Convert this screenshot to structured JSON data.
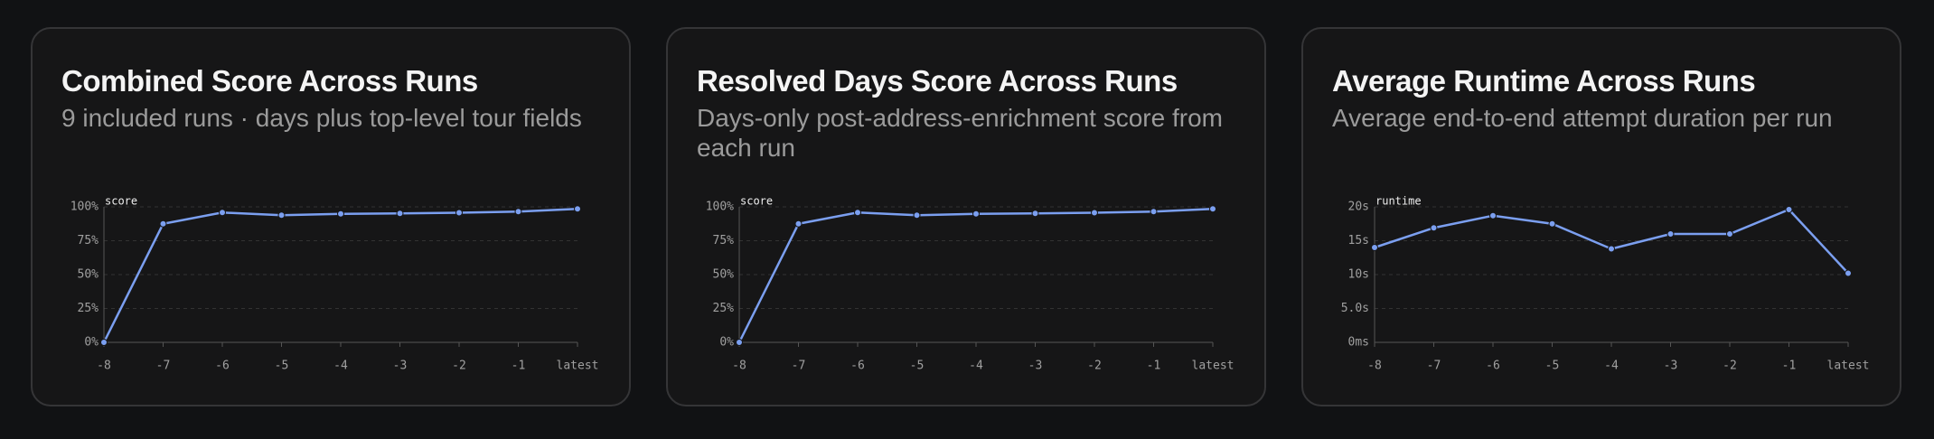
{
  "chart_data": [
    {
      "type": "line",
      "title": "Combined Score Across Runs",
      "subtitle": "9 included runs · days plus top-level tour fields",
      "y_label": "score",
      "categories": [
        "-8",
        "-7",
        "-6",
        "-5",
        "-4",
        "-3",
        "-2",
        "-1",
        "latest"
      ],
      "series": [
        {
          "color": "#7b9ff0",
          "values": [
            0,
            87.5,
            95.8,
            93.8,
            94.8,
            95.2,
            95.7,
            96.5,
            98.5
          ]
        }
      ],
      "ylim": [
        0,
        100
      ],
      "yticks": [
        {
          "value": 0,
          "label": "0%"
        },
        {
          "value": 25,
          "label": "25%"
        },
        {
          "value": 50,
          "label": "50%"
        },
        {
          "value": 75,
          "label": "75%"
        },
        {
          "value": 100,
          "label": "100%"
        }
      ],
      "grid": true
    },
    {
      "type": "line",
      "title": "Resolved Days Score Across Runs",
      "subtitle": "Days-only post-address-enrichment score from each run",
      "y_label": "score",
      "categories": [
        "-8",
        "-7",
        "-6",
        "-5",
        "-4",
        "-3",
        "-2",
        "-1",
        "latest"
      ],
      "series": [
        {
          "color": "#7b9ff0",
          "values": [
            0,
            87.5,
            95.8,
            93.8,
            94.8,
            95.2,
            95.7,
            96.5,
            98.5
          ]
        }
      ],
      "ylim": [
        0,
        100
      ],
      "yticks": [
        {
          "value": 0,
          "label": "0%"
        },
        {
          "value": 25,
          "label": "25%"
        },
        {
          "value": 50,
          "label": "50%"
        },
        {
          "value": 75,
          "label": "75%"
        },
        {
          "value": 100,
          "label": "100%"
        }
      ],
      "grid": true
    },
    {
      "type": "line",
      "title": "Average Runtime Across Runs",
      "subtitle": "Average end-to-end attempt duration per run",
      "y_label": "runtime",
      "categories": [
        "-8",
        "-7",
        "-6",
        "-5",
        "-4",
        "-3",
        "-2",
        "-1",
        "latest"
      ],
      "series": [
        {
          "color": "#7b9ff0",
          "values": [
            14.0,
            16.9,
            18.7,
            17.5,
            13.8,
            16.0,
            16.0,
            19.6,
            10.2
          ]
        }
      ],
      "ylim": [
        0,
        20
      ],
      "yticks": [
        {
          "value": 0,
          "label": "0ms"
        },
        {
          "value": 5,
          "label": "5.0s"
        },
        {
          "value": 10,
          "label": "10s"
        },
        {
          "value": 15,
          "label": "15s"
        },
        {
          "value": 20,
          "label": "20s"
        }
      ],
      "grid": true
    }
  ]
}
